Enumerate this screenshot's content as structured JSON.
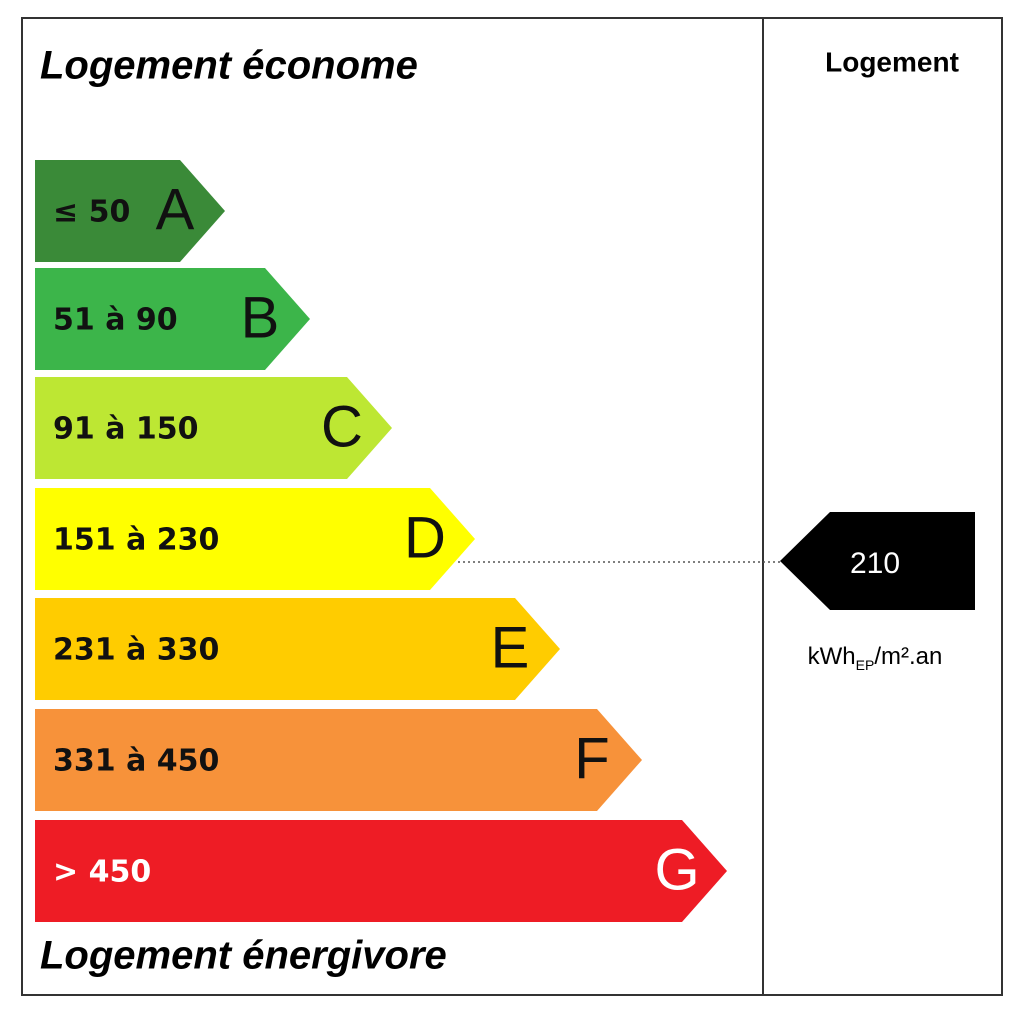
{
  "header": {
    "title": "Logement économe",
    "column_title": "Logement"
  },
  "footer": {
    "title": "Logement énergivore"
  },
  "classes": [
    {
      "range": "≤ 50",
      "letter": "A",
      "color": "#3a8a38"
    },
    {
      "range": "51 à 90",
      "letter": "B",
      "color": "#3cb54a"
    },
    {
      "range": "91 à 150",
      "letter": "C",
      "color": "#bde733"
    },
    {
      "range": "151 à 230",
      "letter": "D",
      "color": "#ffff00"
    },
    {
      "range": "231 à 330",
      "letter": "E",
      "color": "#ffcc00"
    },
    {
      "range": "331 à 450",
      "letter": "F",
      "color": "#f7923a"
    },
    {
      "range": "> 450",
      "letter": "G",
      "color": "#ee1c25"
    }
  ],
  "indicator": {
    "value": "210",
    "unit_main": "kWh",
    "unit_sub": "EP",
    "unit_rest": "/m².an"
  }
}
